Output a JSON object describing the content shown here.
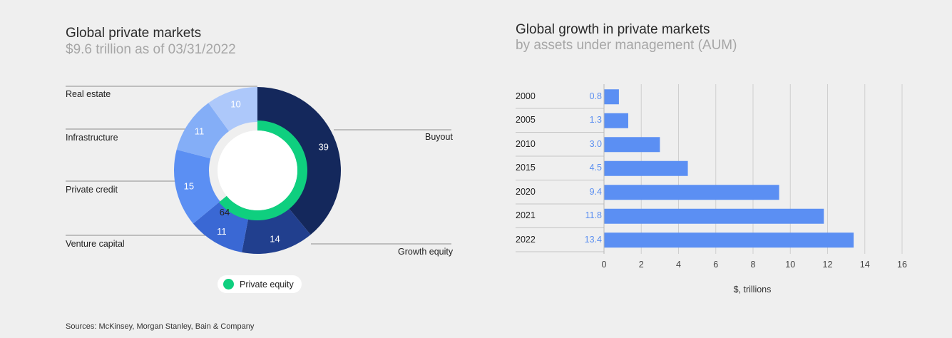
{
  "left": {
    "title": "Global private markets",
    "subtitle": "$9.6 trillion as of 03/31/2022"
  },
  "right": {
    "title": "Global growth in private markets",
    "subtitle": "by assets under management (AUM)"
  },
  "legend": {
    "label": "Private equity",
    "color": "#0fcf7f"
  },
  "source": "Sources: McKinsey, Morgan Stanley, Bain & Company",
  "chart_data": [
    {
      "type": "pie",
      "title": "Global private markets",
      "subtitle": "$9.6 trillion as of 03/31/2022",
      "outer_ring": [
        {
          "label": "Buyout",
          "value": 39,
          "color": "#14285c"
        },
        {
          "label": "Growth equity",
          "value": 14,
          "color": "#213f8e"
        },
        {
          "label": "Venture capital",
          "value": 11,
          "color": "#3a68d4"
        },
        {
          "label": "Private credit",
          "value": 15,
          "color": "#5b8ff3"
        },
        {
          "label": "Infrastructure",
          "value": 11,
          "color": "#84aef7"
        },
        {
          "label": "Real estate",
          "value": 10,
          "color": "#adc8fa"
        }
      ],
      "inner_ring": [
        {
          "label": "Private equity",
          "value": 64,
          "color": "#0fcf7f"
        }
      ]
    },
    {
      "type": "bar",
      "orientation": "horizontal",
      "title": "Global growth in private markets",
      "subtitle": "by assets under management (AUM)",
      "categories": [
        "2000",
        "2005",
        "2010",
        "2015",
        "2020",
        "2021",
        "2022"
      ],
      "values": [
        0.8,
        1.3,
        3.0,
        4.5,
        9.4,
        11.8,
        13.4
      ],
      "value_labels": [
        "0.8",
        "1.3",
        "3.0",
        "4.5",
        "9.4",
        "11.8",
        "13.4"
      ],
      "xlabel": "$, trillions",
      "xlim": [
        0,
        16
      ],
      "xticks": [
        "0",
        "2",
        "4",
        "6",
        "8",
        "10",
        "12",
        "14",
        "16"
      ],
      "grid": true,
      "bar_color": "#5b8ff3"
    }
  ]
}
